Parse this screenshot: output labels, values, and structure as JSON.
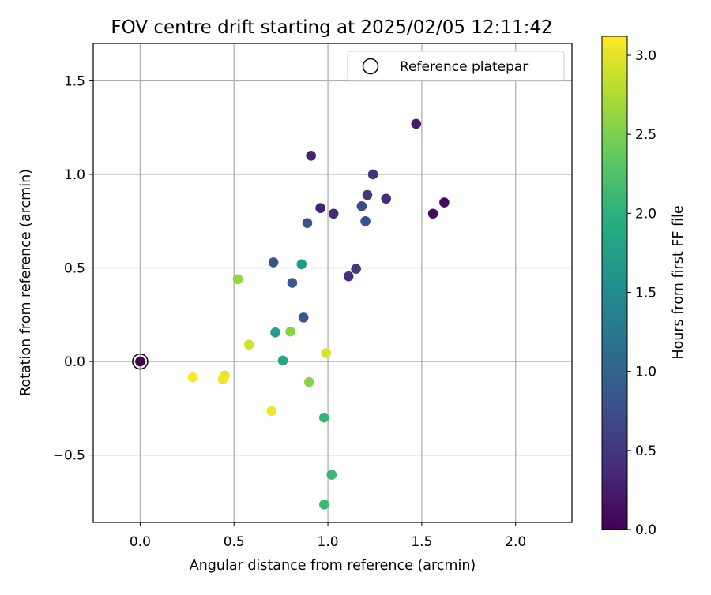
{
  "chart_data": {
    "type": "scatter",
    "title": "FOV centre drift starting at 2025/02/05 12:11:42",
    "xlabel": "Angular distance from reference (arcmin)",
    "ylabel": "Rotation from reference (arcmin)",
    "xlim": [
      -0.25,
      2.3
    ],
    "ylim": [
      -0.86,
      1.7
    ],
    "xticks": [
      "0.0",
      "0.5",
      "1.0",
      "1.5",
      "2.0"
    ],
    "xtick_values": [
      0,
      0.5,
      1.0,
      1.5,
      2.0
    ],
    "yticks": [
      "−0.5",
      "0.0",
      "0.5",
      "1.0",
      "1.5"
    ],
    "ytick_values": [
      -0.5,
      0,
      0.5,
      1.0,
      1.5
    ],
    "grid": true,
    "legend": {
      "position": "top-right",
      "label": "Reference platepar"
    },
    "reference_point": {
      "x": 0.0,
      "y": 0.0
    },
    "colorbar": {
      "label": "Hours from first FF file",
      "colormap": "viridis",
      "range": [
        0,
        3.12
      ],
      "ticks": [
        "0.0",
        "0.5",
        "1.0",
        "1.5",
        "2.0",
        "2.5",
        "3.0"
      ],
      "tick_values": [
        0,
        0.5,
        1.0,
        1.5,
        2.0,
        2.5,
        3.0
      ]
    },
    "points": [
      {
        "x": 0.0,
        "y": 0.0,
        "hours": 0.0
      },
      {
        "x": 1.56,
        "y": 0.79,
        "hours": 0.08
      },
      {
        "x": 1.62,
        "y": 0.85,
        "hours": 0.1
      },
      {
        "x": 1.47,
        "y": 1.27,
        "hours": 0.25
      },
      {
        "x": 0.91,
        "y": 1.1,
        "hours": 0.3
      },
      {
        "x": 0.96,
        "y": 0.82,
        "hours": 0.32
      },
      {
        "x": 1.03,
        "y": 0.79,
        "hours": 0.38
      },
      {
        "x": 1.31,
        "y": 0.87,
        "hours": 0.4
      },
      {
        "x": 1.24,
        "y": 1.0,
        "hours": 0.45
      },
      {
        "x": 1.21,
        "y": 0.89,
        "hours": 0.48
      },
      {
        "x": 1.11,
        "y": 0.455,
        "hours": 0.42
      },
      {
        "x": 1.15,
        "y": 0.495,
        "hours": 0.5
      },
      {
        "x": 1.18,
        "y": 0.83,
        "hours": 0.75
      },
      {
        "x": 1.2,
        "y": 0.75,
        "hours": 0.78
      },
      {
        "x": 0.89,
        "y": 0.74,
        "hours": 0.8
      },
      {
        "x": 0.71,
        "y": 0.53,
        "hours": 0.82
      },
      {
        "x": 0.81,
        "y": 0.42,
        "hours": 0.88
      },
      {
        "x": 0.87,
        "y": 0.235,
        "hours": 0.85
      },
      {
        "x": 0.86,
        "y": 0.52,
        "hours": 1.7
      },
      {
        "x": 0.72,
        "y": 0.155,
        "hours": 1.75
      },
      {
        "x": 0.76,
        "y": 0.005,
        "hours": 1.85
      },
      {
        "x": 0.98,
        "y": -0.3,
        "hours": 2.05
      },
      {
        "x": 1.02,
        "y": -0.605,
        "hours": 2.1
      },
      {
        "x": 0.98,
        "y": -0.765,
        "hours": 2.12
      },
      {
        "x": 0.9,
        "y": -0.11,
        "hours": 2.55
      },
      {
        "x": 0.8,
        "y": 0.16,
        "hours": 2.58
      },
      {
        "x": 0.52,
        "y": 0.44,
        "hours": 2.62
      },
      {
        "x": 0.58,
        "y": 0.09,
        "hours": 2.92
      },
      {
        "x": 0.99,
        "y": 0.045,
        "hours": 2.95
      },
      {
        "x": 0.7,
        "y": -0.265,
        "hours": 3.05
      },
      {
        "x": 0.45,
        "y": -0.075,
        "hours": 3.0
      },
      {
        "x": 0.44,
        "y": -0.095,
        "hours": 3.06
      },
      {
        "x": 0.28,
        "y": -0.085,
        "hours": 3.1
      }
    ]
  }
}
